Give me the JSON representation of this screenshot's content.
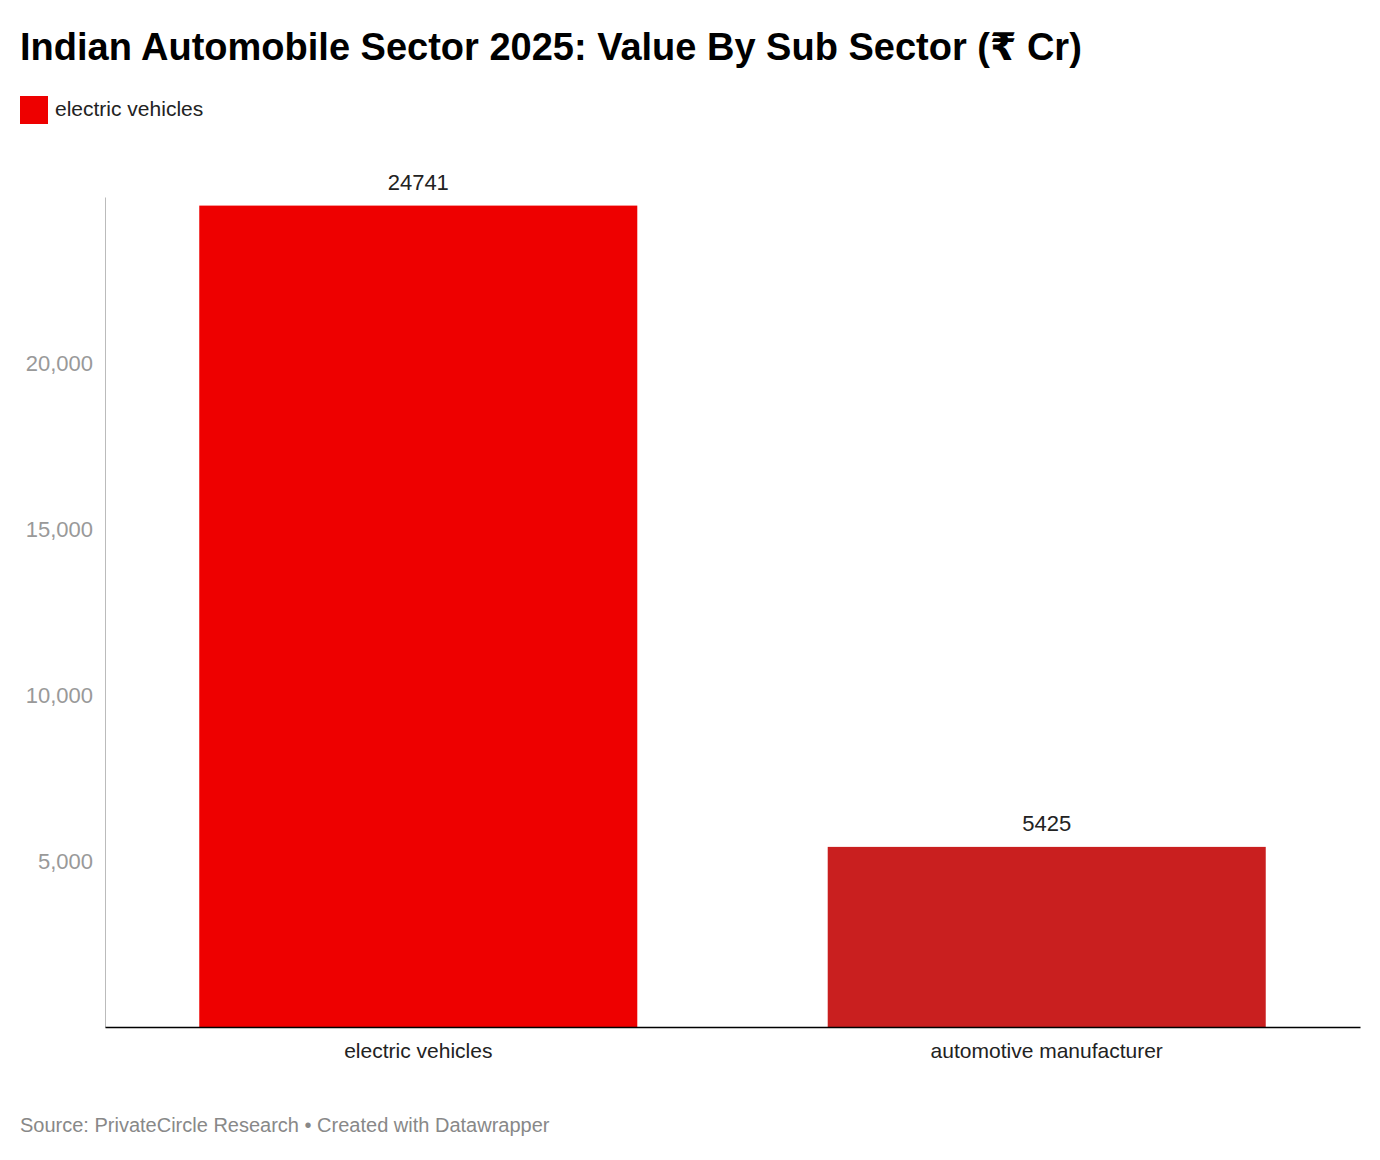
{
  "chart_data": {
    "type": "bar",
    "title": "Indian Automobile Sector 2025: Value By Sub Sector (₹ Cr)",
    "source": "Source: PrivateCircle Research • Created with Datawrapper",
    "categories": [
      "electric vehicles",
      "automotive manufacturer"
    ],
    "series": [
      {
        "name": "electric vehicles",
        "color": "#ee0000",
        "colors": [
          "#ee0000",
          "#c91f1f"
        ],
        "values": [
          24741,
          5425
        ]
      }
    ],
    "ylim": [
      0,
      25000
    ],
    "yticks": [
      {
        "value": 5000,
        "label": "5,000"
      },
      {
        "value": 10000,
        "label": "10,000"
      },
      {
        "value": 15000,
        "label": "15,000"
      },
      {
        "value": 20000,
        "label": "20,000"
      }
    ],
    "grid": false,
    "legend": "top-left",
    "data_labels": true
  }
}
